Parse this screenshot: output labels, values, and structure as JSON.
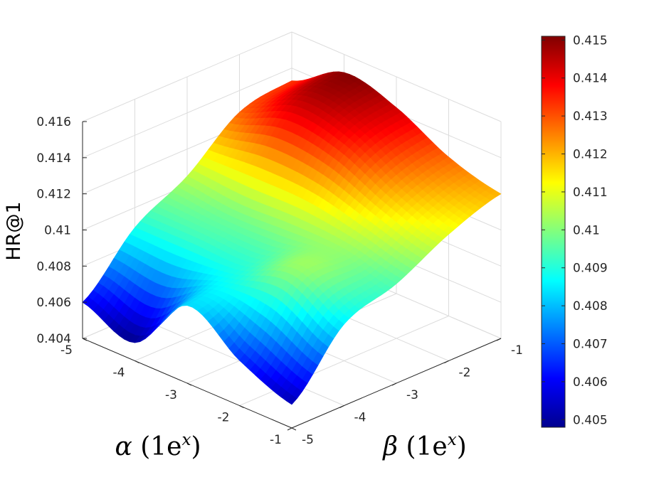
{
  "chart_data": {
    "type": "surface",
    "zlabel": "HR@1",
    "xlabel": {
      "symbol": "α",
      "text": " (1e",
      "sup": "x",
      "close": ")"
    },
    "ylabel": {
      "symbol": "β",
      "text": " (1e",
      "sup": "x",
      "close": ")"
    },
    "alpha_ticks": [
      "-5",
      "-4",
      "-3",
      "-2",
      "-1"
    ],
    "beta_ticks": [
      "-5",
      "-4",
      "-3",
      "-2",
      "-1"
    ],
    "z_ticks": [
      "0.404",
      "0.406",
      "0.408",
      "0.41",
      "0.412",
      "0.414",
      "0.416"
    ],
    "z_tick_values": [
      0.404,
      0.406,
      0.408,
      0.41,
      0.412,
      0.414,
      0.416
    ],
    "zlim": [
      0.404,
      0.416
    ],
    "alpha_range": [
      -5,
      -1
    ],
    "beta_range": [
      -5,
      -1
    ],
    "grid_values": [
      -5,
      -4,
      -3,
      -2,
      -1
    ],
    "surface_z": [
      [
        0.406,
        0.4089,
        0.4105,
        0.4128,
        0.4133
      ],
      [
        0.405,
        0.4089,
        0.4102,
        0.414,
        0.415
      ],
      [
        0.4083,
        0.409,
        0.4103,
        0.4135,
        0.4143
      ],
      [
        0.4065,
        0.41,
        0.4102,
        0.412,
        0.4128
      ],
      [
        0.4053,
        0.4085,
        0.4095,
        0.411,
        0.412
      ]
    ],
    "colormap": "jet",
    "colorbar": {
      "range": [
        0.4048,
        0.4151
      ],
      "ticks": [
        "0.405",
        "0.406",
        "0.407",
        "0.408",
        "0.409",
        "0.41",
        "0.411",
        "0.412",
        "0.413",
        "0.414",
        "0.415"
      ],
      "tick_values": [
        0.405,
        0.406,
        0.407,
        0.408,
        0.409,
        0.41,
        0.411,
        0.412,
        0.413,
        0.414,
        0.415
      ]
    },
    "grid": true
  }
}
